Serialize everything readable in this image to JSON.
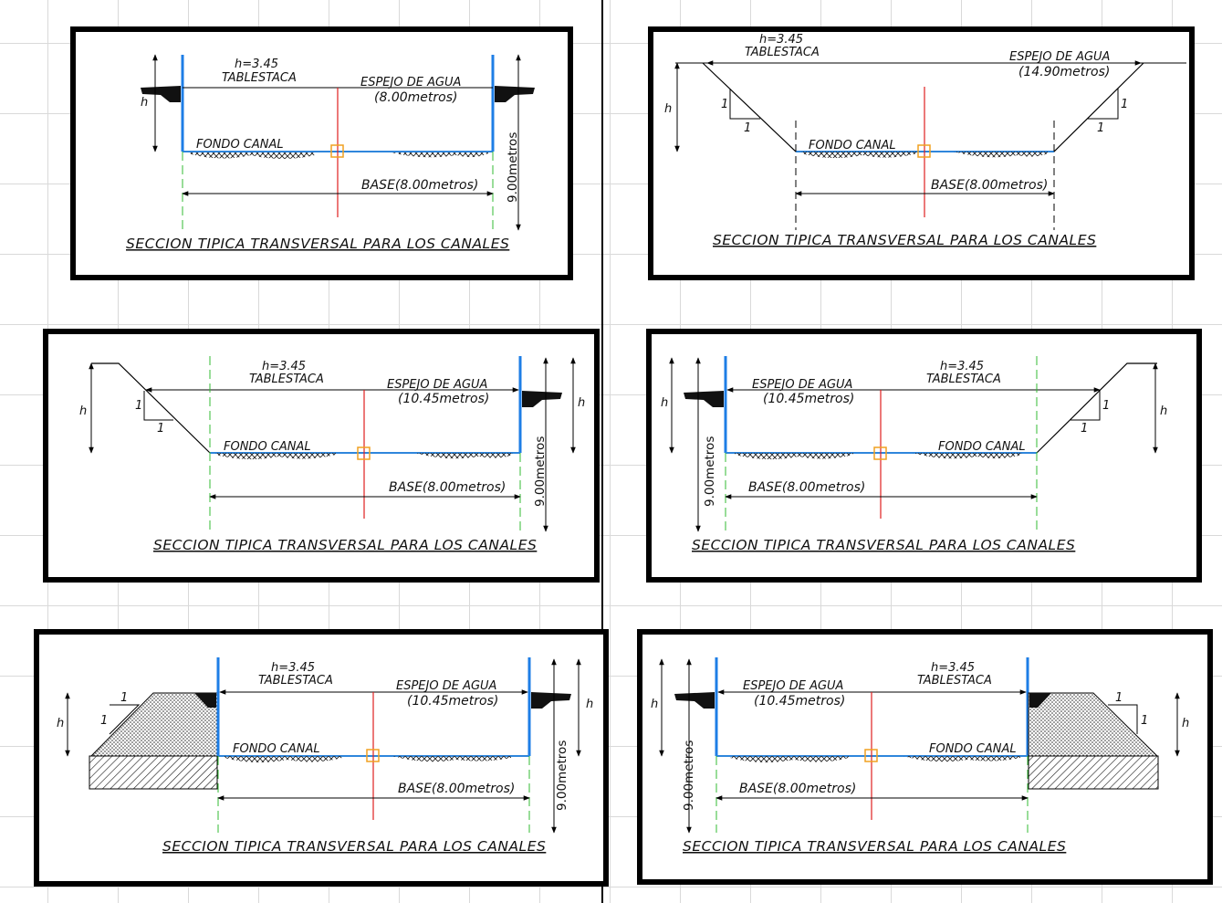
{
  "colors": {
    "frame": "#000000",
    "sheet_pile": "#1e7ee6",
    "water_line": "#000000",
    "canal_bottom": "#2f86dc",
    "axis": "#e02020",
    "guide": "#33bb33",
    "marker": "#f0a020"
  },
  "icons": [
    "sheet-pile-cap-icon",
    "soil-hatch-icon",
    "marker-square-icon"
  ],
  "panels": [
    {
      "h_label": "h=3.45",
      "tablestaca": "TABLESTACA",
      "espejo_label": "ESPEJO  DE  AGUA",
      "espejo_value": "(8.00metros)",
      "fondo": "FONDO  CANAL",
      "base": "BASE(8.00metros)",
      "depth": "9.00metros",
      "h": "h",
      "title": "SECCION  TIPICA  TRANSVERSAL  PARA  LOS  CANALES"
    },
    {
      "h_label": "h=3.45",
      "tablestaca": "TABLESTACA",
      "espejo_label": "ESPEJO  DE  AGUA",
      "espejo_value": "(14.90metros)",
      "fondo": "FONDO  CANAL",
      "base": "BASE(8.00metros)",
      "h": "h",
      "slope": "1",
      "title": "SECCION  TIPICA  TRANSVERSAL  PARA  LOS  CANALES"
    },
    {
      "h_label": "h=3.45",
      "tablestaca": "TABLESTACA",
      "espejo_label": "ESPEJO  DE  AGUA",
      "espejo_value": "(10.45metros)",
      "fondo": "FONDO  CANAL",
      "base": "BASE(8.00metros)",
      "depth": "9.00metros",
      "h": "h",
      "slope": "1",
      "title": "SECCION  TIPICA  TRANSVERSAL  PARA  LOS  CANALES"
    },
    {
      "h_label": "h=3.45",
      "tablestaca": "TABLESTACA",
      "espejo_label": "ESPEJO  DE  AGUA",
      "espejo_value": "(10.45metros)",
      "fondo": "FONDO  CANAL",
      "base": "BASE(8.00metros)",
      "depth": "9.00metros",
      "h": "h",
      "slope": "1",
      "title": "SECCION  TIPICA  TRANSVERSAL  PARA  LOS  CANALES"
    },
    {
      "h_label": "h=3.45",
      "tablestaca": "TABLESTACA",
      "espejo_label": "ESPEJO  DE  AGUA",
      "espejo_value": "(10.45metros)",
      "fondo": "FONDO  CANAL",
      "base": "BASE(8.00metros)",
      "depth": "9.00metros",
      "h": "h",
      "slope": "1",
      "title": "SECCION  TIPICA  TRANSVERSAL  PARA  LOS  CANALES"
    },
    {
      "h_label": "h=3.45",
      "tablestaca": "TABLESTACA",
      "espejo_label": "ESPEJO  DE  AGUA",
      "espejo_value": "(10.45metros)",
      "fondo": "FONDO  CANAL",
      "base": "BASE(8.00metros)",
      "depth": "9.00metros",
      "h": "h",
      "slope": "1",
      "title": "SECCION  TIPICA  TRANSVERSAL  PARA  LOS  CANALES"
    }
  ]
}
